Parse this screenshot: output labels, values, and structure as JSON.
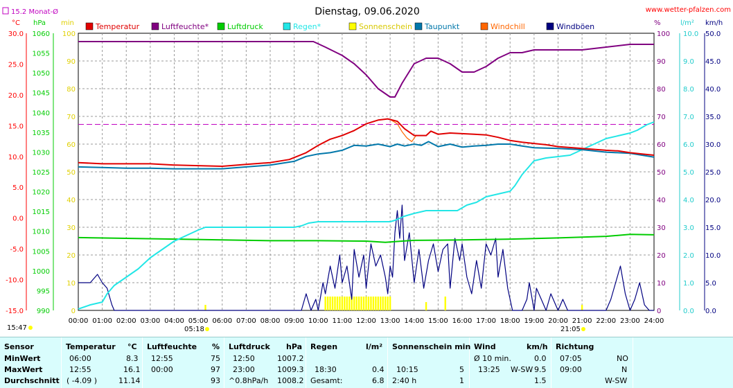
{
  "header": {
    "title": "Dienstag, 09.06.2020",
    "site": "www.wetter-pfalzen.com",
    "month_avg": "15.2 Monat-Ø",
    "time_left": "15:47",
    "sunrise": "05:18",
    "sunset": "21:05"
  },
  "units": {
    "temp": "°C",
    "pressure": "hPa",
    "minutes": "min",
    "percent": "%",
    "rain": "l/m²",
    "wind": "km/h"
  },
  "colors": {
    "temperature": "#e00000",
    "humidity": "#800080",
    "pressure": "#00cc00",
    "rain": "#22e6e6",
    "sunshine": "#ffff00",
    "dewpoint": "#0077aa",
    "windchill": "#ff6600",
    "gusts": "#000080",
    "month_avg": "#c000c0"
  },
  "chart_data": {
    "type": "line",
    "title": "Dienstag, 09.06.2020",
    "x_ticks": [
      "00:00",
      "01:00",
      "02:00",
      "03:00",
      "04:00",
      "05:00",
      "06:00",
      "07:00",
      "08:00",
      "09:00",
      "10:00",
      "11:00",
      "12:00",
      "13:00",
      "14:00",
      "15:00",
      "16:00",
      "17:00",
      "18:00",
      "19:00",
      "20:00",
      "21:00",
      "22:00",
      "23:00",
      "24:00"
    ],
    "x_range": [
      0,
      24
    ],
    "axes": {
      "temp": {
        "range": [
          -15,
          30
        ],
        "ticks": [
          "30.0",
          "25.0",
          "20.0",
          "15.0",
          "10.0",
          "5.0",
          "0.0",
          "-5.0",
          "-10.0",
          "-15.0"
        ]
      },
      "pressure": {
        "range": [
          990,
          1060
        ],
        "ticks": [
          "1060",
          "1055",
          "1050",
          "1045",
          "1040",
          "1035",
          "1030",
          "1025",
          "1020",
          "1015",
          "1010",
          "1005",
          "1000",
          "995",
          "990"
        ]
      },
      "minutes": {
        "range": [
          0,
          100
        ],
        "ticks": [
          "100",
          "90",
          "80",
          "70",
          "60",
          "50",
          "40",
          "30",
          "20",
          "10",
          "0"
        ]
      },
      "percent": {
        "range": [
          0,
          100
        ],
        "ticks": [
          "100",
          "90",
          "80",
          "70",
          "60",
          "50",
          "40",
          "30",
          "20",
          "10",
          "0"
        ]
      },
      "rain": {
        "range": [
          0,
          10
        ],
        "ticks": [
          "10.0",
          "9.0",
          "8.0",
          "7.0",
          "6.0",
          "5.0",
          "4.0",
          "3.0",
          "2.0",
          "1.0",
          "0.0"
        ]
      },
      "wind": {
        "range": [
          0,
          50
        ],
        "ticks": [
          "50.0",
          "45.0",
          "40.0",
          "35.0",
          "30.0",
          "25.0",
          "20.0",
          "15.0",
          "10.0",
          "5.0",
          "0.0"
        ]
      }
    },
    "legend": [
      "Temperatur",
      "Luftfeuchte*",
      "Luftdruck",
      "Regen*",
      "Sonnenschein",
      "Taupunkt",
      "Windchill",
      "Windböen"
    ],
    "month_avg_temp": 15.2,
    "series": [
      {
        "name": "Temperatur",
        "axis": "temp",
        "x": [
          0,
          1,
          2,
          3,
          4,
          5,
          6,
          7,
          8,
          8.8,
          9.5,
          10,
          10.5,
          11,
          11.5,
          12,
          12.5,
          12.9,
          13.3,
          13.6,
          14,
          14.5,
          14.7,
          15,
          15.5,
          16,
          16.5,
          17,
          17.5,
          18,
          18.5,
          19,
          19.5,
          20,
          21,
          22,
          22.5,
          23,
          23.5,
          24
        ],
        "y": [
          9.0,
          8.8,
          8.8,
          8.8,
          8.6,
          8.5,
          8.4,
          8.7,
          9.0,
          9.5,
          10.6,
          11.8,
          12.8,
          13.4,
          14.2,
          15.3,
          15.9,
          16.1,
          15.7,
          14.5,
          13.4,
          13.4,
          14.1,
          13.6,
          13.8,
          13.7,
          13.6,
          13.5,
          13.1,
          12.6,
          12.3,
          12.1,
          11.9,
          11.6,
          11.3,
          11.0,
          10.9,
          10.6,
          10.4,
          10.2
        ]
      },
      {
        "name": "Luftfeuchte*",
        "axis": "percent",
        "x": [
          0,
          1,
          2,
          3,
          4,
          5,
          6,
          7,
          8,
          9,
          9.8,
          10.3,
          11,
          11.5,
          12,
          12.5,
          13,
          13.2,
          13.5,
          14,
          14.5,
          15,
          15.5,
          16,
          16.5,
          17,
          17.5,
          18,
          18.5,
          19,
          20,
          21,
          22,
          23,
          24
        ],
        "y": [
          97,
          97,
          97,
          97,
          97,
          97,
          97,
          97,
          97,
          97,
          97,
          95,
          92,
          89,
          85,
          80,
          77,
          77,
          82,
          89,
          91,
          91,
          89,
          86,
          86,
          88,
          91,
          93,
          93,
          94,
          94,
          94,
          95,
          96,
          96
        ]
      },
      {
        "name": "Luftdruck",
        "axis": "pressure",
        "x": [
          0,
          2,
          4,
          6,
          8,
          10,
          12,
          12.8,
          13.5,
          14,
          16,
          18,
          20,
          21,
          22,
          23,
          24
        ],
        "y": [
          1008.4,
          1008.2,
          1008.0,
          1007.8,
          1007.6,
          1007.6,
          1007.5,
          1007.2,
          1007.5,
          1007.7,
          1007.8,
          1008.0,
          1008.3,
          1008.5,
          1008.7,
          1009.2,
          1009.1
        ]
      },
      {
        "name": "Regen*",
        "axis": "rain",
        "x": [
          0,
          0.5,
          1,
          1.2,
          1.5,
          2,
          2.5,
          3,
          3.5,
          4,
          4.5,
          5,
          5.3,
          5.6,
          6,
          7,
          8,
          8.5,
          9,
          9.3,
          9.6,
          10,
          11,
          12,
          13,
          13.2,
          13.6,
          14,
          14.5,
          15,
          15.8,
          16.2,
          16.6,
          17,
          17.5,
          18,
          18.2,
          18.5,
          18.8,
          19,
          19.5,
          20,
          20.5,
          21,
          21.5,
          22,
          22.5,
          23,
          23.3,
          23.7,
          24
        ],
        "y": [
          0.05,
          0.2,
          0.3,
          0.6,
          0.9,
          1.2,
          1.5,
          1.9,
          2.2,
          2.5,
          2.7,
          2.9,
          3.0,
          3.0,
          3.0,
          3.0,
          3.0,
          3.0,
          3.0,
          3.05,
          3.15,
          3.2,
          3.2,
          3.2,
          3.2,
          3.25,
          3.4,
          3.5,
          3.6,
          3.6,
          3.6,
          3.8,
          3.9,
          4.1,
          4.2,
          4.3,
          4.5,
          4.9,
          5.2,
          5.4,
          5.5,
          5.55,
          5.6,
          5.8,
          6.0,
          6.2,
          6.3,
          6.4,
          6.5,
          6.7,
          6.8
        ]
      },
      {
        "name": "Taupunkt",
        "axis": "temp",
        "x": [
          0,
          1,
          2,
          3,
          4,
          5,
          6,
          7,
          8,
          9,
          9.5,
          10,
          10.5,
          11,
          11.5,
          12,
          12.5,
          13,
          13.3,
          13.6,
          14,
          14.3,
          14.6,
          15,
          15.5,
          16,
          16.5,
          17,
          17.5,
          18,
          18.5,
          19,
          20,
          21,
          22,
          23,
          23.5,
          24
        ],
        "y": [
          8.3,
          8.2,
          8.1,
          8.1,
          8.0,
          8.0,
          8.0,
          8.3,
          8.6,
          9.2,
          10.0,
          10.4,
          10.6,
          11.0,
          11.8,
          11.7,
          12.0,
          11.6,
          12.0,
          11.7,
          12.0,
          11.8,
          12.4,
          11.6,
          12.0,
          11.5,
          11.7,
          11.8,
          12.0,
          12.0,
          11.7,
          11.4,
          11.3,
          11.1,
          10.7,
          10.5,
          10.2,
          9.9
        ]
      },
      {
        "name": "Windchill",
        "axis": "temp",
        "x": [
          13.0,
          13.3,
          13.5,
          13.7,
          13.9,
          14.1
        ],
        "y": [
          16.0,
          15.3,
          14.0,
          13.0,
          12.4,
          13.5
        ]
      },
      {
        "name": "Windböen",
        "axis": "wind",
        "x": [
          0,
          0.5,
          0.8,
          1.0,
          1.2,
          1.4,
          1.5,
          9.3,
          9.5,
          9.7,
          9.9,
          10.0,
          10.2,
          10.3,
          10.5,
          10.7,
          10.9,
          11.0,
          11.2,
          11.4,
          11.5,
          11.7,
          11.9,
          12.0,
          12.2,
          12.4,
          12.6,
          12.8,
          12.9,
          13.0,
          13.1,
          13.2,
          13.3,
          13.4,
          13.5,
          13.6,
          13.8,
          14.0,
          14.2,
          14.4,
          14.6,
          14.8,
          15.0,
          15.2,
          15.4,
          15.5,
          15.7,
          15.9,
          16.0,
          16.2,
          16.4,
          16.6,
          16.8,
          17.0,
          17.2,
          17.4,
          17.5,
          17.7,
          17.9,
          18.1,
          18.3,
          18.5,
          18.7,
          18.8,
          19.0,
          19.1,
          19.3,
          19.5,
          19.7,
          19.9,
          20.0,
          20.2,
          20.4,
          20.6,
          20.8,
          21.0,
          21.2,
          21.4,
          21.6,
          21.8,
          22.0,
          22.2,
          22.4,
          22.6,
          22.8,
          23.0,
          23.2,
          23.4,
          23.6,
          23.8,
          24
        ],
        "y": [
          5.0,
          5.0,
          6.5,
          5.0,
          4.0,
          1.0,
          0,
          0,
          3.0,
          0,
          2.0,
          0,
          5.0,
          3.0,
          8.0,
          4.0,
          10.0,
          5.0,
          8.0,
          2.0,
          11.0,
          6.0,
          10.0,
          4.0,
          12.0,
          8.0,
          10.0,
          6.0,
          3.0,
          8.0,
          6.0,
          14.0,
          18.0,
          13.0,
          19.0,
          9.0,
          14.0,
          5.0,
          11.0,
          4.0,
          9.0,
          12.0,
          7.0,
          11.0,
          12.0,
          4.0,
          13.0,
          9.0,
          12.0,
          6.0,
          3.0,
          9.0,
          4.0,
          12.0,
          10.0,
          13.0,
          6.0,
          11.0,
          4.0,
          0,
          0,
          0,
          2.0,
          5.0,
          0,
          4.0,
          2.0,
          0,
          3.0,
          1.0,
          0,
          2.0,
          0,
          0,
          0,
          0,
          0,
          0,
          0,
          0,
          0,
          2.0,
          5.0,
          8.0,
          3.0,
          0,
          2.0,
          5.0,
          1.0,
          0,
          0
        ]
      }
    ],
    "sunshine_bars": {
      "axis": "minutes",
      "x": [
        5.3,
        10.3,
        10.4,
        10.5,
        10.6,
        10.7,
        10.8,
        10.9,
        11.0,
        11.1,
        11.2,
        11.3,
        11.4,
        11.5,
        11.6,
        11.7,
        11.8,
        11.9,
        12.0,
        12.1,
        12.2,
        12.3,
        12.4,
        12.5,
        12.6,
        12.7,
        12.8,
        12.9,
        13.0,
        14.5,
        15.3,
        21.0
      ],
      "y": [
        2,
        5,
        5,
        5,
        5,
        5,
        5,
        5,
        5,
        5,
        5,
        5,
        5,
        5,
        5,
        5,
        5,
        5,
        5,
        5,
        5,
        5,
        5,
        5,
        5,
        5,
        5,
        5,
        5,
        3,
        5,
        2
      ]
    }
  },
  "stats": {
    "row_labels": [
      "Sensor",
      "MinWert",
      "MaxWert",
      "Durchschnitt"
    ],
    "temperature": {
      "label": "Temperatur",
      "unit": "°C",
      "min_time": "06:00",
      "min_val": "8.3",
      "max_time": "12:55",
      "max_val": "16.1",
      "avg_time": "( -4.09 )",
      "avg_val": "11.14"
    },
    "humidity": {
      "label": "Luftfeuchte",
      "unit": "%",
      "min_time": "12:55",
      "min_val": "75",
      "max_time": "00:00",
      "max_val": "97",
      "avg_time": "",
      "avg_val": "93"
    },
    "pressure": {
      "label": "Luftdruck",
      "unit": "hPa",
      "min_time": "12:50",
      "min_val": "1007.2",
      "max_time": "23:00",
      "max_val": "1009.3",
      "avg_time": "^0.8hPa/h",
      "avg_val": "1008.2"
    },
    "rain": {
      "label": "Regen",
      "unit": "l/m²",
      "min_time": "",
      "min_val": "",
      "max_time": "18:30",
      "max_val": "0.4",
      "avg_time": "Gesamt:",
      "avg_val": "6.8"
    },
    "sunshine": {
      "label": "Sonnenschein min",
      "unit": "",
      "min_time": "",
      "min_val": "",
      "max_time": "10:15",
      "max_val": "5",
      "avg_time": "2:40 h",
      "avg_val": "1"
    },
    "wind": {
      "label": "Wind",
      "unit": "km/h",
      "min_time": "Ø 10 min.",
      "min_val": "0.0",
      "max_time": "13:25",
      "max_dir": "W-SW",
      "max_val": "9.5",
      "avg_time": "",
      "avg_val": "1.5"
    },
    "direction": {
      "label": "Richtung",
      "min_time": "07:05",
      "min_val": "NO",
      "max_time": "09:00",
      "max_val": "N",
      "avg_val": "W-SW"
    }
  }
}
